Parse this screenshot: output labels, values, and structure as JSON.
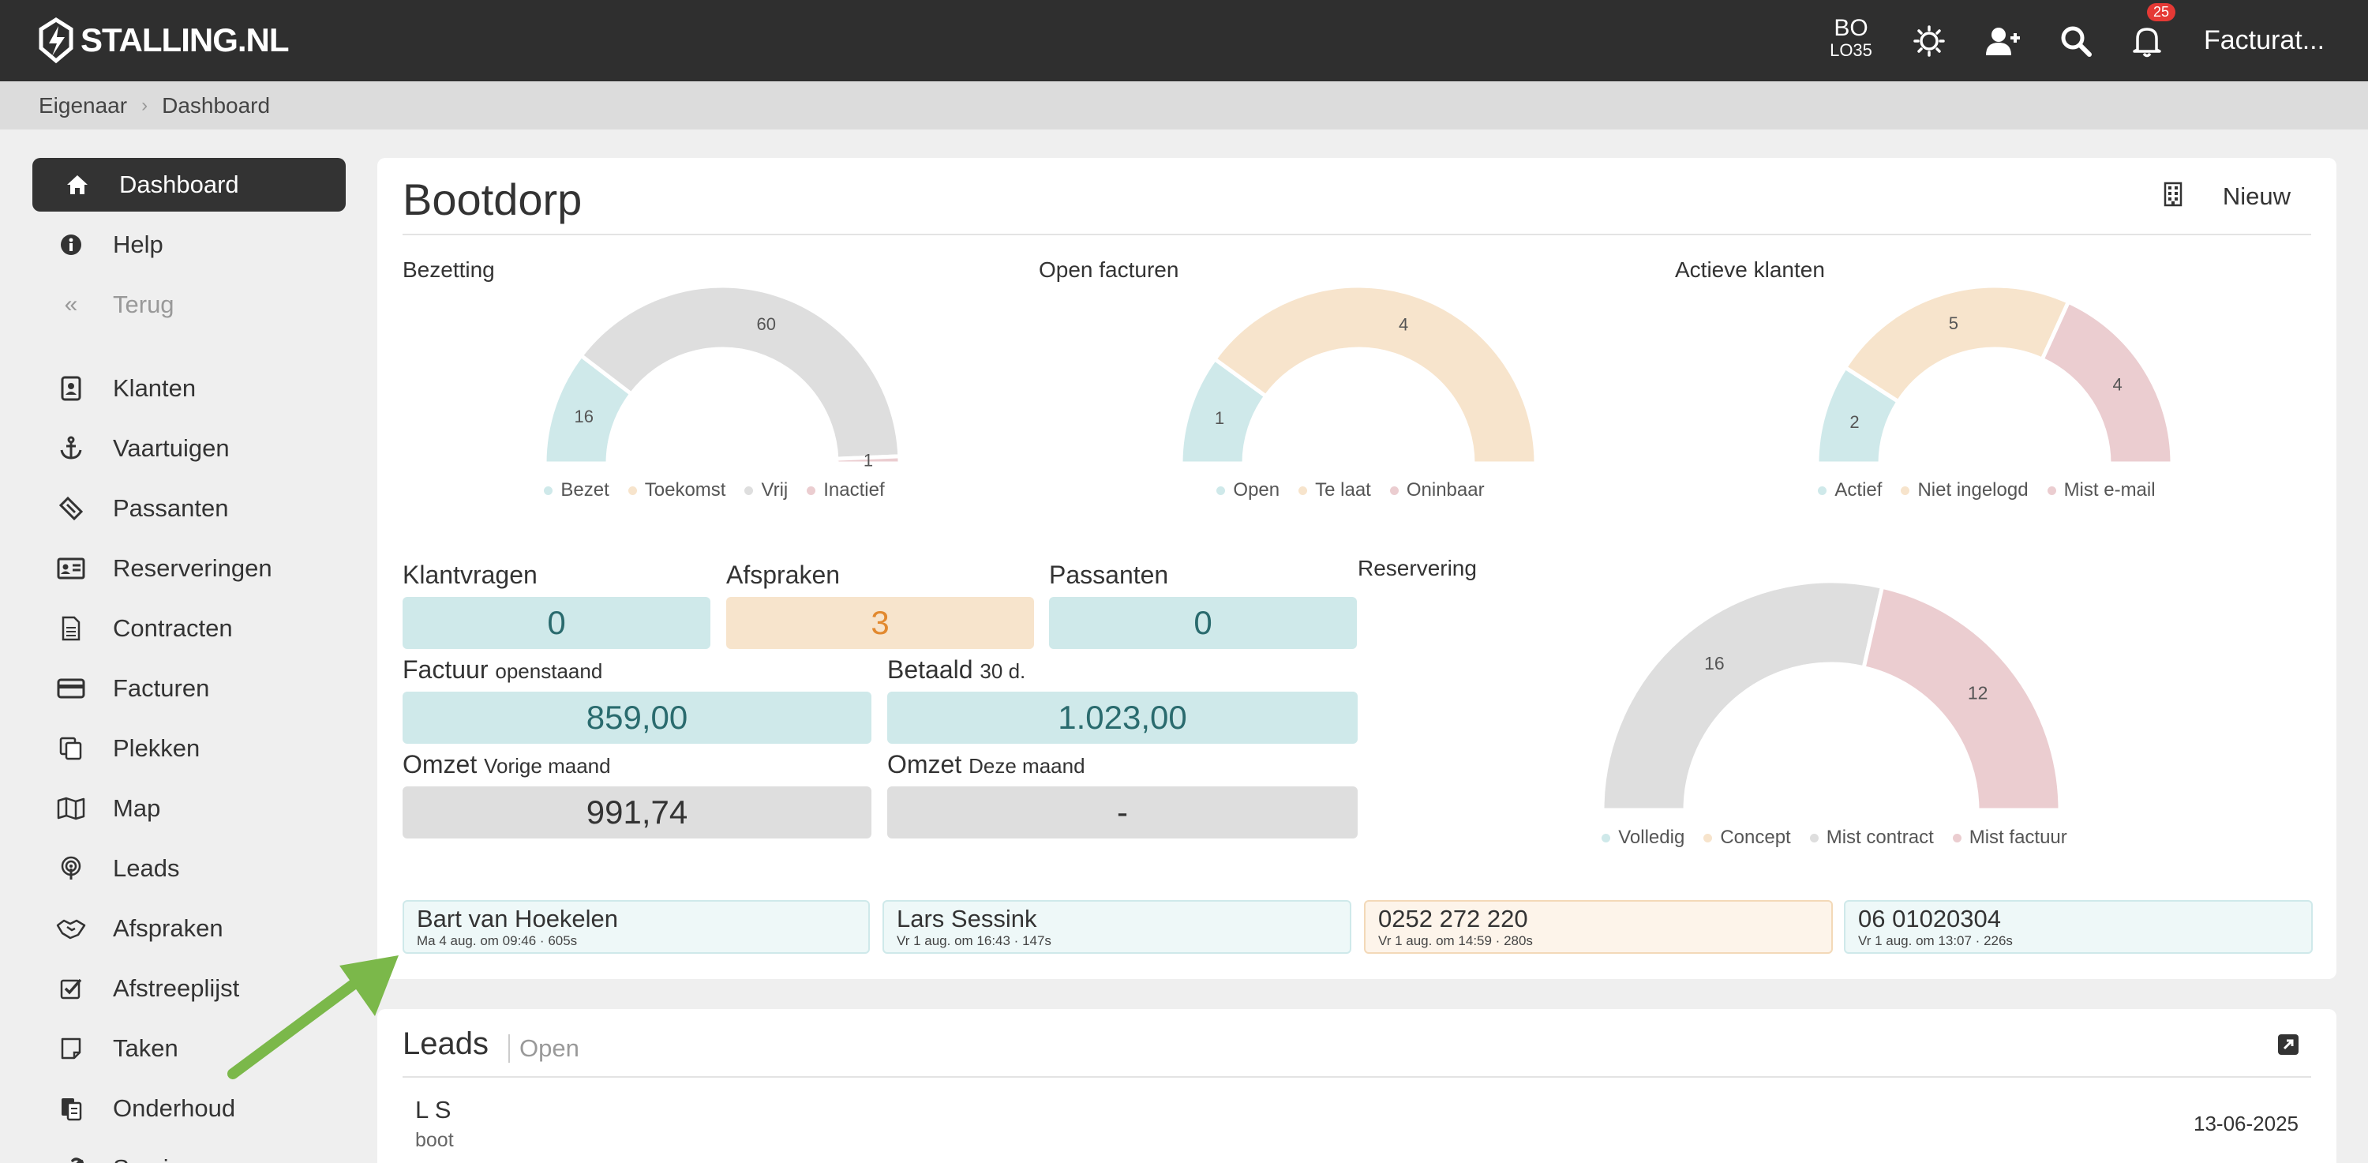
{
  "topbar": {
    "logo_text": "STALLING.NL",
    "user_line1": "BO",
    "user_line2": "LO35",
    "notification_count": "25",
    "menu_label": "Facturat..."
  },
  "breadcrumb": {
    "items": [
      "Eigenaar",
      "Dashboard"
    ]
  },
  "sidebar": {
    "top_items": [
      {
        "label": "Dashboard",
        "icon": "home-icon"
      },
      {
        "label": "Help",
        "icon": "info-icon"
      },
      {
        "label": "Terug",
        "icon": "double-chevron-left-icon"
      }
    ],
    "items": [
      {
        "label": "Klanten",
        "icon": "contact-card-icon"
      },
      {
        "label": "Vaartuigen",
        "icon": "anchor-icon"
      },
      {
        "label": "Passanten",
        "icon": "ticket-icon"
      },
      {
        "label": "Reserveringen",
        "icon": "id-card-icon"
      },
      {
        "label": "Contracten",
        "icon": "document-icon"
      },
      {
        "label": "Facturen",
        "icon": "credit-card-icon"
      },
      {
        "label": "Plekken",
        "icon": "copy-icon"
      },
      {
        "label": "Map",
        "icon": "map-icon"
      },
      {
        "label": "Leads",
        "icon": "podcast-icon"
      },
      {
        "label": "Afspraken",
        "icon": "handshake-icon"
      },
      {
        "label": "Afstreeplijst",
        "icon": "checkbox-icon"
      },
      {
        "label": "Taken",
        "icon": "note-icon"
      },
      {
        "label": "Onderhoud",
        "icon": "clipboard-icon"
      },
      {
        "label": "Service",
        "icon": "wrench-icon"
      }
    ]
  },
  "card": {
    "title": "Bootdorp",
    "new_label": "Nieuw"
  },
  "colors": {
    "teal": "#cfe9ea",
    "peach": "#f7e4cc",
    "grey": "#dedede",
    "pink": "#ebcdd0"
  },
  "gauges": [
    {
      "label": "Bezetting",
      "segments": [
        {
          "name": "Bezet",
          "value": 16,
          "color": "#cfe9ea"
        },
        {
          "name": "Toekomst",
          "value": 0,
          "color": "#f7e4cc"
        },
        {
          "name": "Vrij",
          "value": 60,
          "color": "#dedede"
        },
        {
          "name": "Inactief",
          "value": 1,
          "color": "#ebcdd0"
        }
      ]
    },
    {
      "label": "Open facturen",
      "segments": [
        {
          "name": "Open",
          "value": 1,
          "color": "#cfe9ea"
        },
        {
          "name": "Te laat",
          "value": 4,
          "color": "#f7e4cc"
        },
        {
          "name": "Oninbaar",
          "value": 0,
          "color": "#ebcdd0"
        }
      ]
    },
    {
      "label": "Actieve klanten",
      "segments": [
        {
          "name": "Actief",
          "value": 2,
          "color": "#cfe9ea"
        },
        {
          "name": "Niet ingelogd",
          "value": 5,
          "color": "#f7e4cc"
        },
        {
          "name": "Mist e-mail",
          "value": 4,
          "color": "#ebcdd0"
        }
      ]
    }
  ],
  "reservering": {
    "label": "Reservering",
    "segments": [
      {
        "name": "Volledig",
        "value": 0,
        "color": "#cfe9ea"
      },
      {
        "name": "Concept",
        "value": 0,
        "color": "#f7e4cc"
      },
      {
        "name": "Mist contract",
        "value": 16,
        "color": "#dedede"
      },
      {
        "name": "Mist factuur",
        "value": 12,
        "color": "#ebcdd0"
      }
    ]
  },
  "stats": {
    "klantvragen": {
      "label": "Klantvragen",
      "value": "0"
    },
    "afspraken": {
      "label": "Afspraken",
      "value": "3"
    },
    "passanten": {
      "label": "Passanten",
      "value": "0"
    },
    "factuur": {
      "label": "Factuur",
      "sub": "openstaand",
      "value": "859,00"
    },
    "betaald": {
      "label": "Betaald",
      "sub": "30 d.",
      "value": "1.023,00"
    },
    "omzet_vorig": {
      "label": "Omzet",
      "sub": "Vorige maand",
      "value": "991,74"
    },
    "omzet_deze": {
      "label": "Omzet",
      "sub": "Deze maand",
      "value": "-"
    }
  },
  "contacts": [
    {
      "name": "Bart van Hoekelen",
      "meta": "Ma 4 aug. om 09:46 · 605s"
    },
    {
      "name": "Lars Sessink",
      "meta": "Vr 1 aug. om 16:43 · 147s"
    },
    {
      "name": "0252 272 220",
      "meta": "Vr 1 aug. om 14:59 · 280s"
    },
    {
      "name": "06 01020304",
      "meta": "Vr 1 aug. om 13:07 · 226s"
    }
  ],
  "leads": {
    "title": "Leads",
    "subtitle": "Open",
    "items": [
      {
        "name": "L S",
        "sub": "boot",
        "date": "13-06-2025"
      }
    ]
  }
}
